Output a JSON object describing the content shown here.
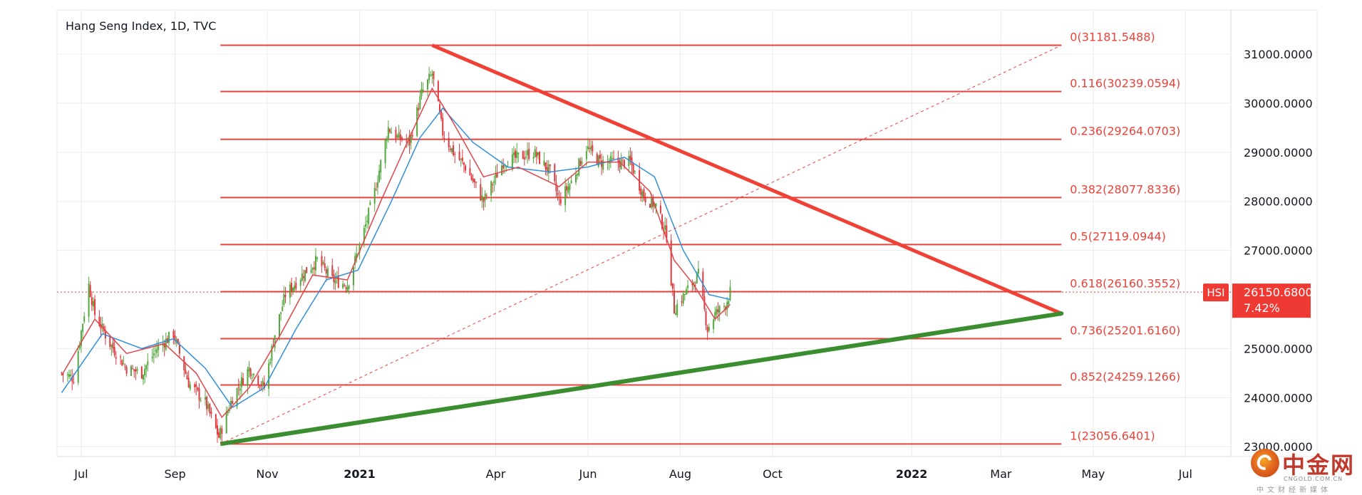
{
  "header": {
    "title": "Hang Seng Index, 1D, TVC"
  },
  "watermark": {
    "cn_name": "中金网",
    "domain": "CNGOLD.COM.CN",
    "tagline": "中文财经新媒体"
  },
  "colors": {
    "fib_line": "#e8433b",
    "fib_text": "#e8433b",
    "resistance": "#ef4136",
    "support": "#3b8e2f",
    "ma_fast": "#e0454b",
    "ma_slow": "#2f8fdb",
    "candle_up": "#53a83f",
    "candle_down": "#e0393e",
    "price_tag_bg": "#ef3a34",
    "grid": "#ececec"
  },
  "chart_data": {
    "type": "candlestick",
    "title": "Hang Seng Index, 1D, TVC",
    "symbol": "HSI",
    "x_axis": {
      "ticks": [
        "Jul",
        "Sep",
        "Nov",
        "2021",
        "Apr",
        "Jun",
        "Aug",
        "Oct",
        "2022",
        "Mar",
        "May",
        "Jul"
      ],
      "tick_dates": [
        "2020-07-01",
        "2020-09-01",
        "2020-11-01",
        "2021-01-01",
        "2021-04-01",
        "2021-06-01",
        "2021-08-01",
        "2021-10-01",
        "2022-01-01",
        "2022-03-01",
        "2022-05-01",
        "2022-07-01"
      ],
      "bold_ticks": [
        "2021",
        "2022"
      ],
      "range": [
        "2020-06-15",
        "2022-07-31"
      ]
    },
    "y_axis": {
      "ticks": [
        "31000.0000",
        "30000.0000",
        "29000.0000",
        "28000.0000",
        "27000.0000",
        "25000.0000",
        "24000.0000",
        "23000.0000"
      ],
      "tick_values": [
        31000,
        30000,
        29000,
        28000,
        27000,
        25000,
        24000,
        23000
      ],
      "range": [
        22800,
        31900
      ]
    },
    "last_price": {
      "label": "HSI",
      "value": "26150.6800",
      "change": "7.42%",
      "numeric": 26150.68
    },
    "fib_levels": [
      {
        "label": "0(31181.5488)",
        "value": 31181.5488
      },
      {
        "label": "0.116(30239.0594)",
        "value": 30239.0594
      },
      {
        "label": "0.236(29264.0703)",
        "value": 29264.0703
      },
      {
        "label": "0.382(28077.8336)",
        "value": 28077.8336
      },
      {
        "label": "0.5(27119.0944)",
        "value": 27119.0944
      },
      {
        "label": "0.618(26160.3552)",
        "value": 26160.3552
      },
      {
        "label": "0.736(25201.6160)",
        "value": 25201.616
      },
      {
        "label": "0.852(24259.1266)",
        "value": 24259.1266
      },
      {
        "label": "1(23056.6401)",
        "value": 23056.6401
      }
    ],
    "fib_range": {
      "start_date": "2020-10-01",
      "end_date": "2022-04-10"
    },
    "trendlines": [
      {
        "name": "resistance",
        "start": [
          "2021-02-18",
          31181.5
        ],
        "end": [
          "2022-04-10",
          25715
        ]
      },
      {
        "name": "support",
        "start": [
          "2020-10-01",
          23056.6
        ],
        "end": [
          "2022-04-10",
          25715
        ]
      },
      {
        "name": "fib-diagonal",
        "style": "dashed",
        "start": [
          "2020-10-01",
          23056.6
        ],
        "end": [
          "2022-04-10",
          31181.5
        ]
      }
    ],
    "close_path": [
      [
        "2020-06-18",
        24500
      ],
      [
        "2020-06-26",
        24400
      ],
      [
        "2020-07-06",
        26300
      ],
      [
        "2020-07-10",
        25700
      ],
      [
        "2020-07-20",
        25100
      ],
      [
        "2020-07-31",
        24600
      ],
      [
        "2020-08-10",
        24500
      ],
      [
        "2020-08-20",
        25000
      ],
      [
        "2020-08-31",
        25300
      ],
      [
        "2020-09-10",
        24300
      ],
      [
        "2020-09-21",
        23900
      ],
      [
        "2020-09-30",
        23200
      ],
      [
        "2020-10-09",
        24000
      ],
      [
        "2020-10-20",
        24600
      ],
      [
        "2020-10-30",
        24200
      ],
      [
        "2020-11-06",
        25300
      ],
      [
        "2020-11-13",
        26100
      ],
      [
        "2020-11-24",
        26500
      ],
      [
        "2020-12-04",
        26800
      ],
      [
        "2020-12-14",
        26400
      ],
      [
        "2020-12-24",
        26300
      ],
      [
        "2021-01-04",
        27400
      ],
      [
        "2021-01-11",
        28200
      ],
      [
        "2021-01-20",
        29500
      ],
      [
        "2021-01-26",
        29300
      ],
      [
        "2021-02-03",
        29200
      ],
      [
        "2021-02-11",
        30200
      ],
      [
        "2021-02-18",
        30600
      ],
      [
        "2021-02-25",
        29400
      ],
      [
        "2021-03-04",
        29000
      ],
      [
        "2021-03-12",
        28700
      ],
      [
        "2021-03-24",
        28000
      ],
      [
        "2021-04-06",
        28800
      ],
      [
        "2021-04-16",
        28900
      ],
      [
        "2021-04-26",
        29000
      ],
      [
        "2021-05-07",
        28600
      ],
      [
        "2021-05-13",
        28000
      ],
      [
        "2021-05-21",
        28400
      ],
      [
        "2021-05-31",
        29100
      ],
      [
        "2021-06-09",
        28800
      ],
      [
        "2021-06-18",
        28800
      ],
      [
        "2021-06-29",
        28800
      ],
      [
        "2021-07-08",
        28100
      ],
      [
        "2021-07-16",
        27900
      ],
      [
        "2021-07-23",
        27300
      ],
      [
        "2021-07-28",
        25800
      ],
      [
        "2021-08-06",
        26200
      ],
      [
        "2021-08-13",
        26500
      ],
      [
        "2021-08-19",
        25400
      ],
      [
        "2021-08-24",
        25700
      ],
      [
        "2021-08-31",
        25900
      ],
      [
        "2021-09-03",
        26150.68
      ]
    ],
    "sma_fast": [
      [
        "2020-06-18",
        24450
      ],
      [
        "2020-07-10",
        25600
      ],
      [
        "2020-07-31",
        24900
      ],
      [
        "2020-08-25",
        25100
      ],
      [
        "2020-09-15",
        24500
      ],
      [
        "2020-10-02",
        23600
      ],
      [
        "2020-10-20",
        24200
      ],
      [
        "2020-11-10",
        25300
      ],
      [
        "2020-12-01",
        26500
      ],
      [
        "2020-12-24",
        26400
      ],
      [
        "2021-01-15",
        28000
      ],
      [
        "2021-02-03",
        29300
      ],
      [
        "2021-02-18",
        30300
      ],
      [
        "2021-03-04",
        29600
      ],
      [
        "2021-03-24",
        28500
      ],
      [
        "2021-04-16",
        28700
      ],
      [
        "2021-05-13",
        28300
      ],
      [
        "2021-06-01",
        28800
      ],
      [
        "2021-06-22",
        28800
      ],
      [
        "2021-07-12",
        28200
      ],
      [
        "2021-07-28",
        26800
      ],
      [
        "2021-08-10",
        26300
      ],
      [
        "2021-08-24",
        25600
      ],
      [
        "2021-09-03",
        25900
      ]
    ],
    "sma_slow": [
      [
        "2020-06-18",
        24100
      ],
      [
        "2020-07-15",
        25300
      ],
      [
        "2020-08-10",
        25000
      ],
      [
        "2020-08-31",
        25200
      ],
      [
        "2020-09-21",
        24600
      ],
      [
        "2020-10-09",
        23800
      ],
      [
        "2020-10-30",
        24200
      ],
      [
        "2020-11-20",
        25400
      ],
      [
        "2020-12-10",
        26400
      ],
      [
        "2020-12-31",
        26600
      ],
      [
        "2021-01-22",
        28000
      ],
      [
        "2021-02-10",
        29300
      ],
      [
        "2021-02-25",
        29900
      ],
      [
        "2021-03-17",
        29200
      ],
      [
        "2021-04-09",
        28700
      ],
      [
        "2021-05-07",
        28600
      ],
      [
        "2021-06-01",
        28700
      ],
      [
        "2021-06-25",
        28900
      ],
      [
        "2021-07-15",
        28500
      ],
      [
        "2021-08-03",
        27000
      ],
      [
        "2021-08-20",
        26100
      ],
      [
        "2021-09-03",
        26000
      ]
    ]
  }
}
